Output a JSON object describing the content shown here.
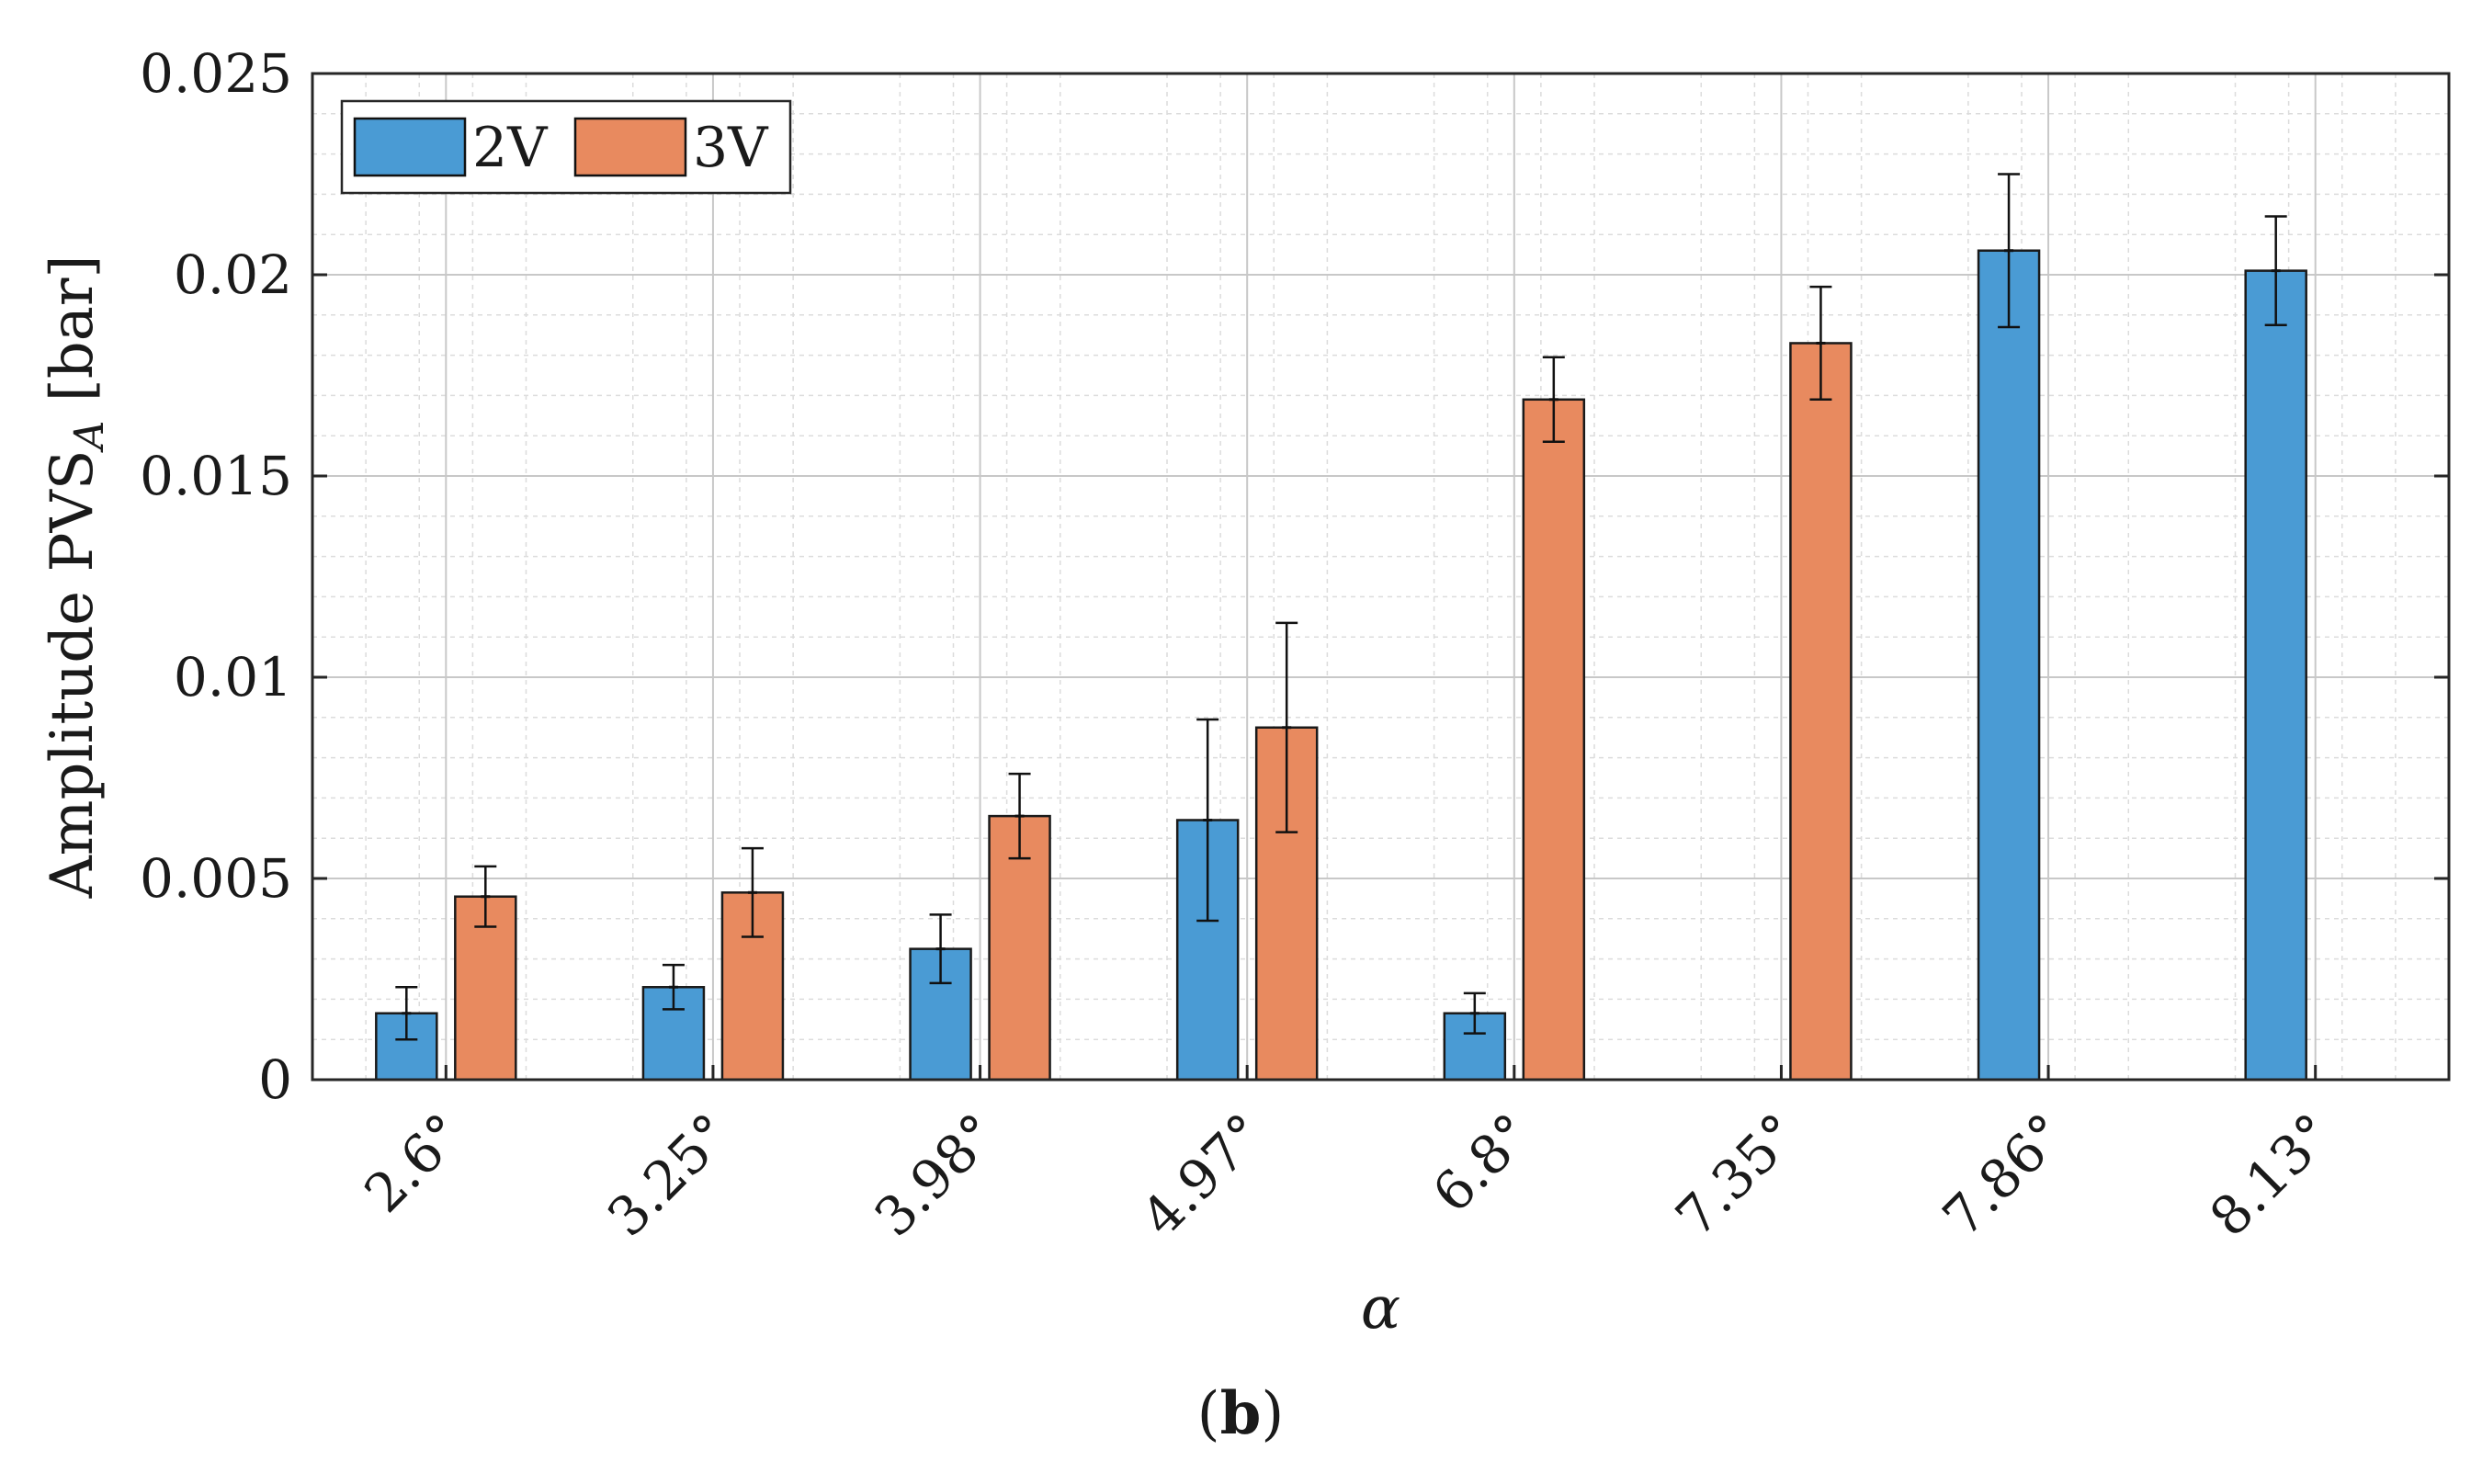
{
  "chart_data": {
    "type": "bar",
    "title": "",
    "xlabel": "α",
    "ylabel_main": "Amplitude PVS",
    "ylabel_sub": "A",
    "ylabel_unit": " [bar]",
    "categories": [
      "2.6°",
      "3.25°",
      "3.98°",
      "4.97°",
      "6.8°",
      "7.35°",
      "7.86°",
      "8.13°"
    ],
    "series": [
      {
        "name": "2V",
        "color": "#4a9bd4",
        "values": [
          0.00165,
          0.0023,
          0.00325,
          0.00645,
          0.00165,
          0.0,
          0.0206,
          0.0201
        ],
        "error": [
          0.00065,
          0.00055,
          0.00085,
          0.0025,
          0.0005,
          0.0,
          0.0019,
          0.00135
        ]
      },
      {
        "name": "3V",
        "color": "#e88a5f",
        "values": [
          0.00455,
          0.00465,
          0.00655,
          0.00875,
          0.0169,
          0.0183,
          0.0,
          0.0
        ],
        "error": [
          0.00075,
          0.0011,
          0.00105,
          0.0026,
          0.00105,
          0.0014,
          0.0,
          0.0
        ]
      }
    ],
    "ylim": [
      0,
      0.025
    ],
    "yticks": [
      "0",
      "0.005",
      "0.01",
      "0.015",
      "0.02",
      "0.025"
    ],
    "ytick_values": [
      0,
      0.005,
      0.01,
      0.015,
      0.02,
      0.025
    ],
    "grid": true,
    "minor_grid": true,
    "legend_position": "top-left"
  },
  "caption": {
    "open": "(",
    "letter": "b",
    "close": ")"
  }
}
